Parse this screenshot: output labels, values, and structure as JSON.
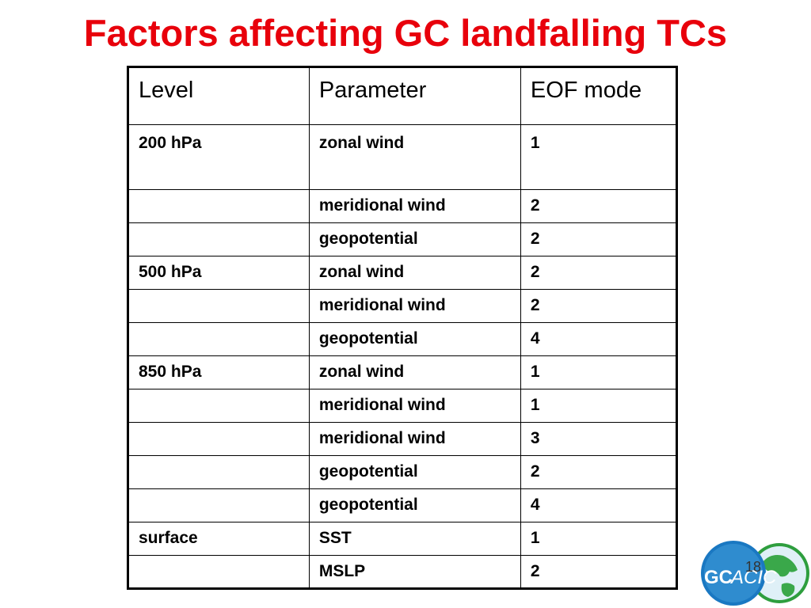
{
  "slide": {
    "title": "Factors affecting GC landfalling TCs",
    "number": "18"
  },
  "table": {
    "headers": [
      "Level",
      "Parameter",
      "EOF mode"
    ],
    "rows": [
      [
        "200 hPa",
        "zonal wind",
        "1"
      ],
      [
        "",
        "meridional wind",
        "2"
      ],
      [
        "",
        "geopotential",
        "2"
      ],
      [
        "500 hPa",
        "zonal wind",
        "2"
      ],
      [
        "",
        "meridional wind",
        "2"
      ],
      [
        "",
        "geopotential",
        "4"
      ],
      [
        "850 hPa",
        "zonal wind",
        "1"
      ],
      [
        "",
        "meridional wind",
        "1"
      ],
      [
        "",
        "meridional wind",
        "3"
      ],
      [
        "",
        "geopotential",
        "2"
      ],
      [
        "",
        "geopotential",
        "4"
      ],
      [
        "surface",
        "SST",
        "1"
      ],
      [
        "",
        "MSLP",
        "2"
      ]
    ]
  },
  "logo": {
    "text_gc": "GC",
    "text_acic": "ACIC",
    "colors": {
      "blue_circle": "#1a78c2",
      "green_circle": "#2e9e3e",
      "text": "#ffffff"
    }
  }
}
